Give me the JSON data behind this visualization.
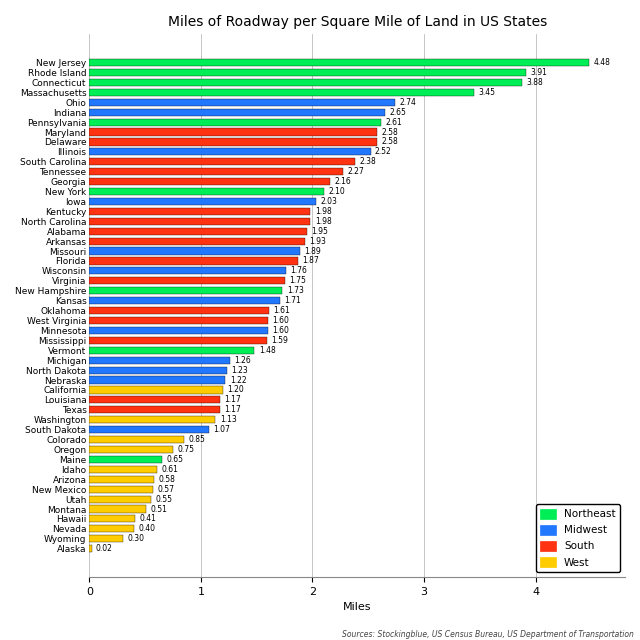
{
  "title": "Miles of Roadway per Square Mile of Land in US States",
  "xlabel": "Miles",
  "source": "Sources: Stockingblue, US Census Bureau, US Department of Transportation",
  "states": [
    "New Jersey",
    "Rhode Island",
    "Connecticut",
    "Massachusetts",
    "Ohio",
    "Indiana",
    "Pennsylvania",
    "Maryland",
    "Delaware",
    "Illinois",
    "South Carolina",
    "Tennessee",
    "Georgia",
    "New York",
    "Iowa",
    "Kentucky",
    "North Carolina",
    "Alabama",
    "Arkansas",
    "Missouri",
    "Florida",
    "Wisconsin",
    "Virginia",
    "New Hampshire",
    "Kansas",
    "Oklahoma",
    "West Virginia",
    "Minnesota",
    "Mississippi",
    "Vermont",
    "Michigan",
    "North Dakota",
    "Nebraska",
    "California",
    "Louisiana",
    "Texas",
    "Washington",
    "South Dakota",
    "Colorado",
    "Oregon",
    "Maine",
    "Idaho",
    "Arizona",
    "New Mexico",
    "Utah",
    "Montana",
    "Hawaii",
    "Nevada",
    "Wyoming",
    "Alaska"
  ],
  "values": [
    4.48,
    3.91,
    3.88,
    3.45,
    2.74,
    2.65,
    2.61,
    2.58,
    2.58,
    2.52,
    2.38,
    2.27,
    2.16,
    2.1,
    2.03,
    1.98,
    1.98,
    1.95,
    1.93,
    1.89,
    1.87,
    1.76,
    1.75,
    1.73,
    1.71,
    1.61,
    1.6,
    1.6,
    1.59,
    1.48,
    1.26,
    1.23,
    1.22,
    1.2,
    1.17,
    1.17,
    1.13,
    1.07,
    0.85,
    0.75,
    0.65,
    0.61,
    0.58,
    0.57,
    0.55,
    0.51,
    0.41,
    0.4,
    0.3,
    0.02
  ],
  "regions": [
    "Northeast",
    "Northeast",
    "Northeast",
    "Northeast",
    "Midwest",
    "Midwest",
    "Northeast",
    "South",
    "South",
    "Midwest",
    "South",
    "South",
    "South",
    "Northeast",
    "Midwest",
    "South",
    "South",
    "South",
    "South",
    "Midwest",
    "South",
    "Midwest",
    "South",
    "Northeast",
    "Midwest",
    "South",
    "South",
    "Midwest",
    "South",
    "Northeast",
    "Midwest",
    "Midwest",
    "Midwest",
    "West",
    "South",
    "South",
    "West",
    "Midwest",
    "West",
    "West",
    "Northeast",
    "West",
    "West",
    "West",
    "West",
    "West",
    "West",
    "West",
    "West",
    "West"
  ],
  "region_colors": {
    "Northeast": "#00ee55",
    "Midwest": "#2277ff",
    "South": "#ff3311",
    "West": "#ffcc00"
  },
  "legend_labels": [
    "Northeast",
    "Midwest",
    "South",
    "West"
  ],
  "legend_colors": [
    "#00ee55",
    "#2277ff",
    "#ff3311",
    "#ffcc00"
  ],
  "xlim": [
    0,
    4.8
  ],
  "xticks": [
    0,
    1,
    2,
    3,
    4
  ],
  "background_color": "#ffffff",
  "grid_color": "#bbbbbb",
  "title_fontsize": 10,
  "label_fontsize": 6.5,
  "value_fontsize": 5.5
}
